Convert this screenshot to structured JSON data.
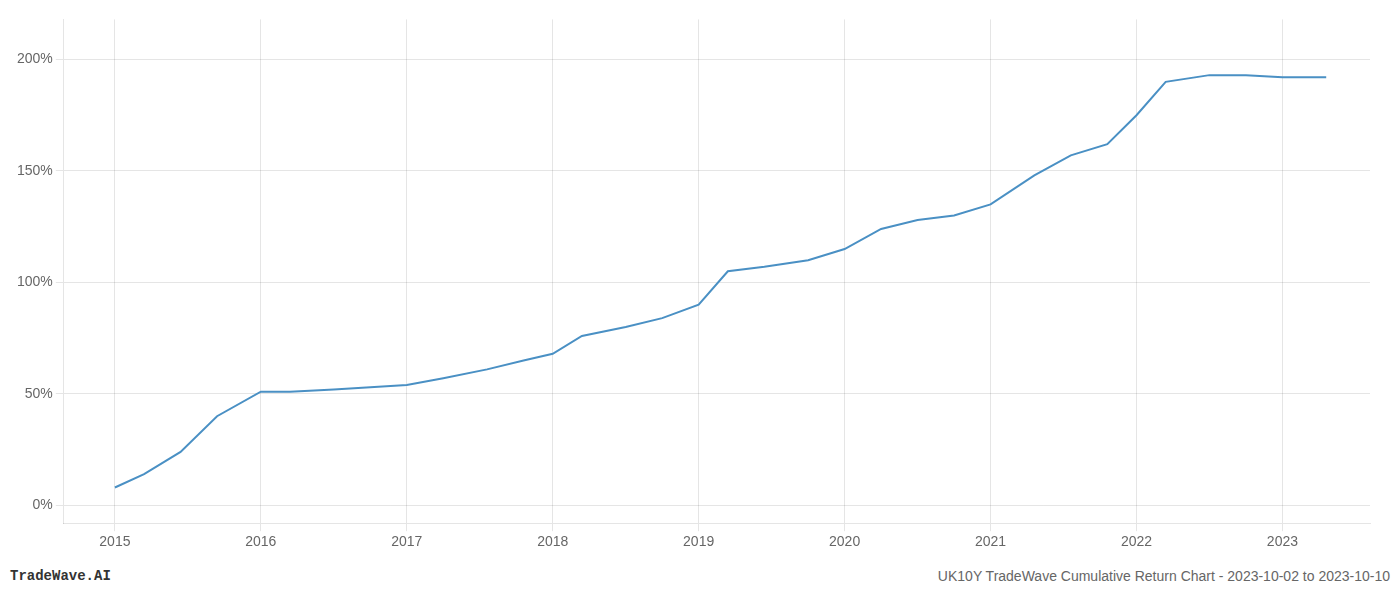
{
  "chart_data": {
    "type": "line",
    "annotations": [
      "TradeWave.AI",
      "UK10Y TradeWave Cumulative Return Chart - 2023-10-02 to 2023-10-10"
    ],
    "x": [
      2015.0,
      2015.2,
      2015.45,
      2015.7,
      2016.0,
      2016.2,
      2016.5,
      2016.75,
      2017.0,
      2017.25,
      2017.55,
      2017.8,
      2018.0,
      2018.2,
      2018.5,
      2018.75,
      2019.0,
      2019.2,
      2019.45,
      2019.75,
      2020.0,
      2020.25,
      2020.5,
      2020.75,
      2021.0,
      2021.3,
      2021.55,
      2021.8,
      2022.0,
      2022.2,
      2022.5,
      2022.75,
      2023.0,
      2023.3
    ],
    "values": [
      8,
      14,
      24,
      40,
      51,
      51,
      52,
      53,
      54,
      57,
      61,
      65,
      68,
      76,
      80,
      84,
      90,
      105,
      107,
      110,
      115,
      124,
      128,
      130,
      135,
      148,
      157,
      162,
      175,
      190,
      193,
      193,
      192,
      192
    ],
    "color": "#4a90c4",
    "xlim": [
      2014.65,
      2023.6
    ],
    "xticks": [
      2015,
      2016,
      2017,
      2018,
      2019,
      2020,
      2021,
      2022,
      2023
    ],
    "ylim": [
      -8,
      218
    ],
    "yticks": [
      {
        "value": 0,
        "label": "0%"
      },
      {
        "value": 50,
        "label": "50%"
      },
      {
        "value": 100,
        "label": "100%"
      },
      {
        "value": 150,
        "label": "150%"
      },
      {
        "value": 200,
        "label": "200%"
      }
    ],
    "grid": true
  }
}
